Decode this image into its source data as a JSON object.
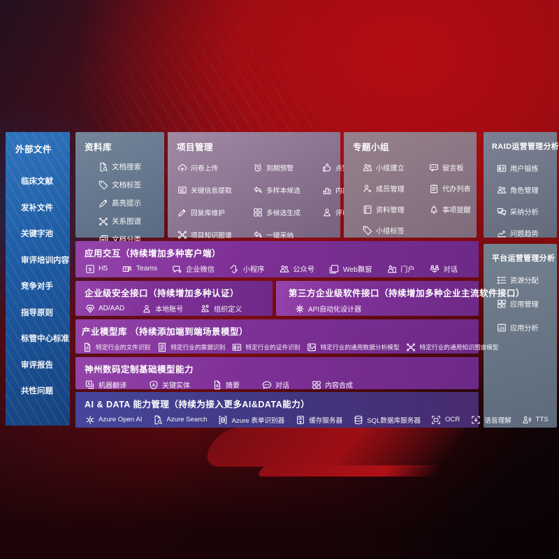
{
  "colors": {
    "background_red": "#a90d12",
    "panel_blue": "#1d5aa2",
    "accent_purple": "#7e3097",
    "ai_row_indigo": "#41357f",
    "panel_gray": "#6b7788"
  },
  "left_panel": {
    "title": "外部文件",
    "items": [
      "临床文献",
      "发补文件",
      "关键字池",
      "审评培训内容",
      "竞争对手",
      "指导原则",
      "标管中心标准",
      "审评报告",
      "共性问题"
    ]
  },
  "repository": {
    "title": "资料库",
    "items": [
      {
        "icon": "doc-search-icon",
        "label": "文档搜索"
      },
      {
        "icon": "tag-icon",
        "label": "文档标签"
      },
      {
        "icon": "highlighter-icon",
        "label": "高亮提示"
      },
      {
        "icon": "knowledge-graph-icon",
        "label": "关系图谱"
      },
      {
        "icon": "doc-copy-icon",
        "label": "文档分类"
      }
    ]
  },
  "project": {
    "title": "项目管理",
    "items": [
      {
        "icon": "cloud-upload-icon",
        "label": "问卷上传"
      },
      {
        "icon": "alarm-icon",
        "label": "到期预警"
      },
      {
        "icon": "thumbs-up-icon",
        "label": "点赞感谢"
      },
      {
        "icon": "extract-doc-icon",
        "label": "关键信息提取"
      },
      {
        "icon": "swoosh-arrow-icon",
        "label": "多样本候选"
      },
      {
        "icon": "ranking-podium-icon",
        "label": "内部专家排名"
      },
      {
        "icon": "pen-icon",
        "label": "回复库维护"
      },
      {
        "icon": "puzzle-icon",
        "label": "多候选生成"
      },
      {
        "icon": "person-icon",
        "label": "评审员画像"
      },
      {
        "icon": "knowledge-graph-icon",
        "label": "项目知识图谱"
      },
      {
        "icon": "swoosh-arrow-icon",
        "label": "一键采纳"
      }
    ]
  },
  "groups": {
    "title": "专题小组",
    "items": [
      {
        "icon": "people-icon",
        "label": "小组建立"
      },
      {
        "icon": "bbs-bubble-icon",
        "label": "留言板"
      },
      {
        "icon": "member-add-icon",
        "label": "成员管理"
      },
      {
        "icon": "clipboard-icon",
        "label": "代办列表"
      },
      {
        "icon": "book-icon",
        "label": "资料管理"
      },
      {
        "icon": "bell-icon",
        "label": "事项提醒"
      },
      {
        "icon": "tag-icon",
        "label": "小组标签"
      }
    ]
  },
  "raid": {
    "title": "RAID运营管理分析",
    "items": [
      {
        "icon": "id-card-icon",
        "label": "用户锻炼"
      },
      {
        "icon": "people-icon",
        "label": "角色管理"
      },
      {
        "icon": "qa-bubbles-icon",
        "label": "采纳分析"
      },
      {
        "icon": "trend-chart-icon",
        "label": "问题趋势"
      }
    ]
  },
  "platform": {
    "title": "平台运营管理分析",
    "items": [
      {
        "icon": "list-icon",
        "label": "资源分配"
      },
      {
        "icon": "app-grid-icon",
        "label": "应用管理"
      },
      {
        "icon": "chart-card-icon",
        "label": "应用分析"
      }
    ]
  },
  "rows": {
    "interaction": {
      "title": "应用交互（持续增加多种客户端）",
      "items": [
        {
          "icon": "h5-icon",
          "label": "H5"
        },
        {
          "icon": "teams-icon",
          "label": "Teams"
        },
        {
          "icon": "wechat-work-icon",
          "label": "企业微信"
        },
        {
          "icon": "miniprogram-icon",
          "label": "小程序"
        },
        {
          "icon": "people-icon",
          "label": "公众号"
        },
        {
          "icon": "web-window-icon",
          "label": "Web飘窗"
        },
        {
          "icon": "portal-person-icon",
          "label": "门户"
        },
        {
          "icon": "chat-people-icon",
          "label": "对话"
        }
      ]
    },
    "security": {
      "title": "企业级安全接口（持续增加多种认证）",
      "items": [
        {
          "icon": "shield-gem-icon",
          "label": "AD/AAD"
        },
        {
          "icon": "person-icon",
          "label": "本地账号"
        },
        {
          "icon": "org-people-icon",
          "label": "组织定义"
        }
      ]
    },
    "thirdparty": {
      "title": "第三方企业级软件接口（持续增加多种企业主流软件接口）",
      "items": [
        {
          "icon": "api-gear-icon",
          "label": "API自动化设计器"
        }
      ]
    },
    "industry": {
      "title": "产业模型库 （持续添加端到端场景模型）",
      "items": [
        {
          "icon": "doc-icon",
          "label": "特定行业的文件识别"
        },
        {
          "icon": "invoice-icon",
          "label": "特定行业的票据识别"
        },
        {
          "icon": "id-card-icon",
          "label": "特定行业的证件识别"
        },
        {
          "icon": "image-box-icon",
          "label": "特定行业的通用数据分析模型"
        },
        {
          "icon": "knowledge-graph-icon",
          "label": "特定行业的通用知识图谱模型"
        }
      ]
    },
    "digital_china": {
      "title": "神州数码定制基础模型能力",
      "items": [
        {
          "icon": "translate-icon",
          "label": "机器翻译"
        },
        {
          "icon": "entity-shield-icon",
          "label": "关键实体"
        },
        {
          "icon": "doc-icon",
          "label": "摘要"
        },
        {
          "icon": "chat-bubble-icon",
          "label": "对话"
        },
        {
          "icon": "puzzle-icon",
          "label": "内容合成"
        }
      ]
    },
    "ai_data": {
      "title": "AI & DATA 能力管理（持续为接入更多AI&DATA能力）",
      "items": [
        {
          "icon": "openai-icon",
          "label": "Azure Open AI"
        },
        {
          "icon": "doc-search-icon",
          "label": "Azure Search"
        },
        {
          "icon": "form-doc-icon",
          "label": "Azure 表单识别器"
        },
        {
          "icon": "server-icon",
          "label": "缓存服务器"
        },
        {
          "icon": "database-icon",
          "label": "SQL数据库服务器"
        },
        {
          "icon": "ocr-frame-icon",
          "label": "OCR"
        },
        {
          "icon": "speech-icon",
          "label": "语音理解"
        },
        {
          "icon": "tts-icon",
          "label": "TTS"
        }
      ]
    }
  }
}
